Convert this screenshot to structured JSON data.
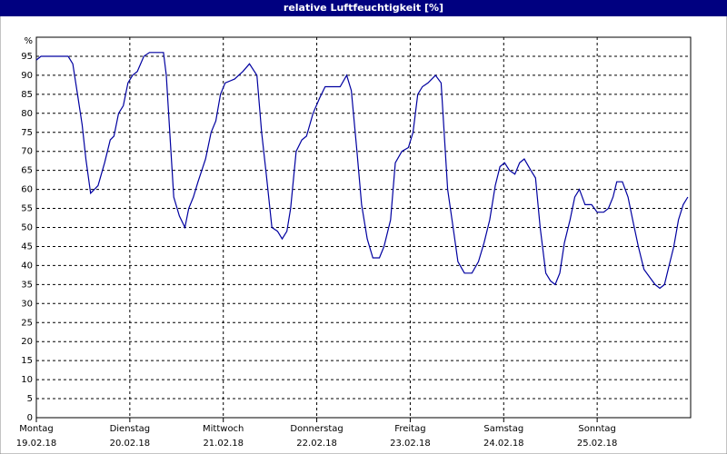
{
  "chart_data": {
    "type": "line",
    "title": "relative Luftfeuchtigkeit [%]",
    "xlim": [
      0,
      7
    ],
    "ylim": [
      0,
      100
    ],
    "xticks": [
      {
        "value": 0,
        "label": "Montag"
      },
      {
        "value": 1,
        "label": "Dienstag"
      },
      {
        "value": 2,
        "label": "Mittwoch"
      },
      {
        "value": 3,
        "label": "Donnerstag"
      },
      {
        "value": 4,
        "label": "Freitag"
      },
      {
        "value": 5,
        "label": "Samstag"
      },
      {
        "value": 6,
        "label": "Sonntag"
      }
    ],
    "xtick_dates": [
      "19.02.18",
      "20.02.18",
      "21.02.18",
      "22.02.18",
      "23.02.18",
      "24.02.18",
      "25.02.18"
    ],
    "yticks": [
      0,
      5,
      10,
      15,
      20,
      25,
      30,
      35,
      40,
      45,
      50,
      55,
      60,
      65,
      70,
      75,
      80,
      85,
      90,
      95,
      {
        "value": 100,
        "label": "%"
      }
    ],
    "grid": true,
    "series": [
      {
        "color": "#0000a0",
        "x": [
          0,
          0.05,
          0.34,
          0.39,
          0.44,
          0.49,
          0.53,
          0.58,
          0.66,
          0.73,
          0.79,
          0.83,
          0.88,
          0.93,
          0.98,
          1.03,
          1.08,
          1.15,
          1.21,
          1.36,
          1.39,
          1.44,
          1.47,
          1.53,
          1.59,
          1.63,
          1.68,
          1.73,
          1.81,
          1.87,
          1.92,
          1.97,
          2.02,
          2.12,
          2.21,
          2.28,
          2.36,
          2.41,
          2.46,
          2.52,
          2.58,
          2.63,
          2.68,
          2.72,
          2.78,
          2.84,
          2.89,
          2.96,
          3.03,
          3.09,
          3.18,
          3.25,
          3.32,
          3.37,
          3.43,
          3.48,
          3.54,
          3.6,
          3.67,
          3.72,
          3.79,
          3.84,
          3.91,
          3.98,
          4.03,
          4.08,
          4.13,
          4.19,
          4.27,
          4.33,
          4.4,
          4.47,
          4.51,
          4.58,
          4.66,
          4.73,
          4.79,
          4.85,
          4.91,
          4.96,
          5.01,
          5.06,
          5.12,
          5.17,
          5.22,
          5.29,
          5.34,
          5.39,
          5.45,
          5.5,
          5.55,
          5.6,
          5.65,
          5.71,
          5.76,
          5.81,
          5.87,
          5.94,
          6.0,
          6.07,
          6.12,
          6.17,
          6.21,
          6.27,
          6.33,
          6.38,
          6.44,
          6.5,
          6.56,
          6.62,
          6.67,
          6.72,
          6.77,
          6.82,
          6.87,
          6.92,
          6.97
        ],
        "values": [
          94,
          95,
          95,
          93,
          85,
          77,
          68,
          59,
          61,
          67,
          73,
          74,
          80,
          82,
          88,
          90,
          91,
          95,
          96,
          96,
          90,
          70,
          58,
          53,
          50,
          55,
          58,
          62,
          68,
          75,
          78,
          85,
          88,
          89,
          91,
          93,
          90,
          75,
          64,
          50,
          49,
          47,
          49,
          55,
          70,
          73,
          74,
          80,
          84,
          87,
          87,
          87,
          90,
          86,
          70,
          56,
          47,
          42,
          42,
          45,
          52,
          67,
          70,
          71,
          75,
          85,
          87,
          88,
          90,
          88,
          60,
          48,
          41,
          38,
          38,
          41,
          46,
          52,
          61,
          66,
          67,
          65,
          64,
          67,
          68,
          65,
          63,
          50,
          38,
          36,
          35,
          38,
          46,
          52,
          58,
          60,
          56,
          56,
          54,
          54,
          55,
          58,
          62,
          62,
          58,
          52,
          45,
          39,
          37,
          35,
          34,
          35,
          40,
          45,
          52,
          56,
          58
        ]
      }
    ]
  }
}
